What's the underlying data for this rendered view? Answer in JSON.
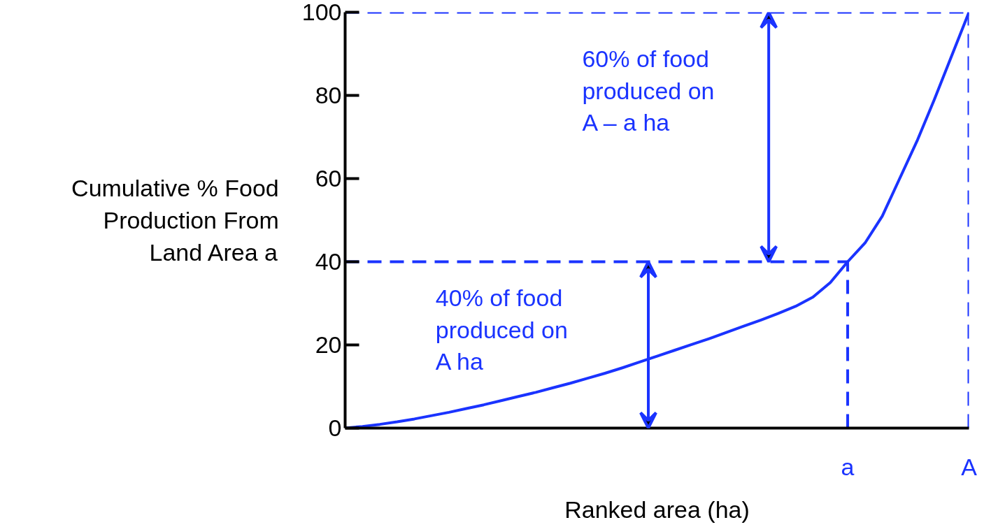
{
  "chart_data": {
    "type": "line",
    "xlabel": "Ranked area (ha)",
    "ylabel": "Cumulative % Food\nProduction From\nLand Area a",
    "categories": [
      null,
      null,
      null,
      null,
      null,
      null,
      null,
      null,
      null,
      null,
      null,
      null,
      null,
      null,
      null,
      null,
      null,
      null,
      null,
      null,
      null,
      null,
      null,
      null,
      null,
      null,
      null,
      null,
      null,
      "a",
      null,
      null,
      null,
      null,
      null,
      null,
      "A"
    ],
    "ylim": [
      0,
      100
    ],
    "yticks": [
      0,
      20,
      40,
      60,
      80,
      100
    ],
    "grid": false,
    "series": [
      {
        "color": "#1a33ff",
        "values": [
          0,
          0.4,
          0.9,
          1.5,
          2.2,
          3.0,
          3.8,
          4.7,
          5.6,
          6.6,
          7.6,
          8.6,
          9.7,
          10.8,
          12.0,
          13.2,
          14.5,
          15.9,
          17.3,
          18.7,
          20.1,
          21.5,
          23.0,
          24.5,
          26.0,
          27.6,
          29.3,
          31.5,
          35.0,
          40,
          44.5,
          51,
          60,
          69,
          79,
          89.5,
          100
        ]
      }
    ],
    "ref_lines": [
      {
        "axis": "y",
        "value": 40,
        "color": "#1a33ff",
        "line_style": "dashed"
      },
      {
        "axis": "y",
        "value": 100,
        "color": "#1a33ff",
        "line_style": "dashed"
      },
      {
        "axis": "x",
        "value": "a",
        "color": "#1a33ff",
        "line_style": "dashed"
      },
      {
        "axis": "x",
        "value": "A",
        "color": "#1a33ff",
        "line_style": "dashed"
      }
    ],
    "annotations": [
      "60% of food\nproduced on\nA – a ha",
      "40% of food\nproduced on\nA ha"
    ]
  }
}
